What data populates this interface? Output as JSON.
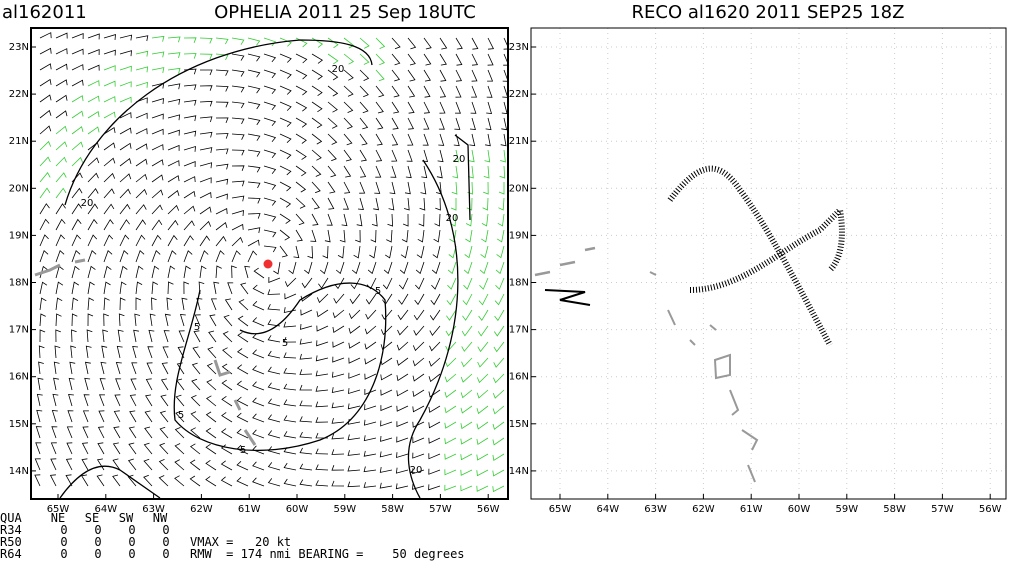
{
  "left_panel": {
    "id_label": "al162011",
    "title": "OPHELIA 2011 25 Sep 18UTC",
    "contour_labels": [
      "20",
      "20",
      "20",
      "20",
      "20",
      "5",
      "5",
      "5",
      "5",
      "5"
    ]
  },
  "right_panel": {
    "title": "RECO al1620 2011 SEP25 18Z"
  },
  "lat_labels": [
    "23N",
    "22N",
    "21N",
    "20N",
    "19N",
    "18N",
    "17N",
    "16N",
    "15N",
    "14N"
  ],
  "lon_labels": [
    "65W",
    "64W",
    "63W",
    "62W",
    "61W",
    "60W",
    "59W",
    "58W",
    "57W",
    "56W"
  ],
  "table": {
    "header": [
      "QUA",
      "NE",
      "SE",
      "SW",
      "NW"
    ],
    "rows": [
      [
        "R34",
        "0",
        "0",
        "0",
        "0"
      ],
      [
        "R50",
        "0",
        "0",
        "0",
        "0"
      ],
      [
        "R64",
        "0",
        "0",
        "0",
        "0"
      ]
    ]
  },
  "vmax": "VMAX =   20 kt",
  "rmw": "RMW  = 174 nmi BEARING =    50 degrees"
}
